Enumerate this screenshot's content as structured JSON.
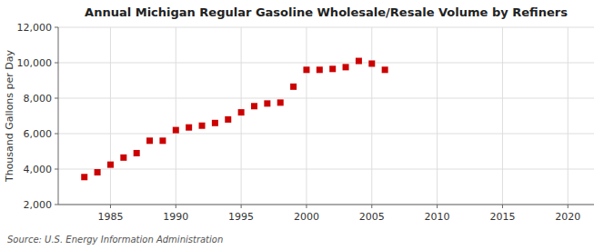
{
  "chart_data": {
    "type": "scatter",
    "title": "Annual Michigan Regular Gasoline Wholesale/Resale Volume by Refiners",
    "ylabel": "Thousand Gallons per Day",
    "annotations": [
      "Source: U.S. Energy Information Administration"
    ],
    "x": [
      1983,
      1984,
      1985,
      1986,
      1987,
      1988,
      1989,
      1990,
      1991,
      1992,
      1993,
      1994,
      1995,
      1996,
      1997,
      1998,
      1999,
      2000,
      2001,
      2002,
      2003,
      2004,
      2005,
      2006
    ],
    "values": [
      3550,
      3820,
      4250,
      4650,
      4900,
      5600,
      5600,
      6200,
      6350,
      6450,
      6600,
      6800,
      7200,
      7550,
      7700,
      7750,
      8650,
      9600,
      9600,
      9650,
      9750,
      10100,
      9950,
      9600
    ],
    "color": "#cc0000",
    "marker": "square",
    "xlim": [
      1981,
      2022
    ],
    "ylim": [
      2000,
      12000
    ],
    "xticks": [
      1985,
      1990,
      1995,
      2000,
      2005,
      2010,
      2015,
      2020
    ],
    "yticks": [
      {
        "value": 2000,
        "label": "2,000"
      },
      {
        "value": 4000,
        "label": "4,000"
      },
      {
        "value": 6000,
        "label": "6,000"
      },
      {
        "value": 8000,
        "label": "8,000"
      },
      {
        "value": 10000,
        "label": "10,000"
      },
      {
        "value": 12000,
        "label": "12,000"
      }
    ],
    "grid": true
  }
}
